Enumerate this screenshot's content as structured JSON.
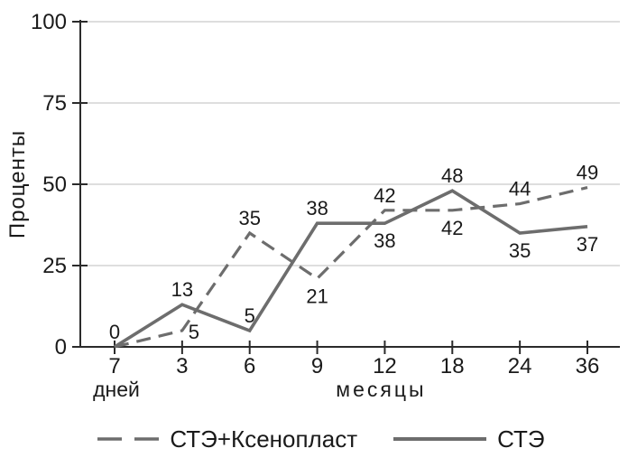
{
  "chart_data": {
    "type": "line",
    "title": "",
    "ylabel": "Проценты",
    "x_categories": [
      "7",
      "3",
      "6",
      "9",
      "12",
      "18",
      "24",
      "36"
    ],
    "x_unit_first": "дней",
    "x_unit_rest": "месяцы",
    "y_ticks": [
      0,
      25,
      50,
      75,
      100
    ],
    "ylim": [
      0,
      100
    ],
    "grid": "horizontal-only",
    "legend_position": "bottom",
    "series": [
      {
        "name": "СТЭ+Ксенопласт",
        "line_style": "dashed",
        "color": "#6d6d6d",
        "values": [
          0,
          5,
          35,
          21,
          42,
          42,
          44,
          49
        ],
        "label_positions": [
          null,
          "right",
          "above",
          "below",
          "above",
          "below",
          "above",
          "above"
        ]
      },
      {
        "name": "СТЭ",
        "line_style": "solid",
        "color": "#6d6d6d",
        "values": [
          0,
          13,
          5,
          38,
          38,
          48,
          35,
          37
        ],
        "label_positions": [
          "above",
          "above",
          "above",
          "above",
          "below",
          "above",
          "below",
          "below"
        ]
      }
    ],
    "colors": {
      "axis": "#2b2b2b",
      "grid": "#c9c9c9",
      "text": "#1a1a1a",
      "background": "#ffffff"
    }
  }
}
